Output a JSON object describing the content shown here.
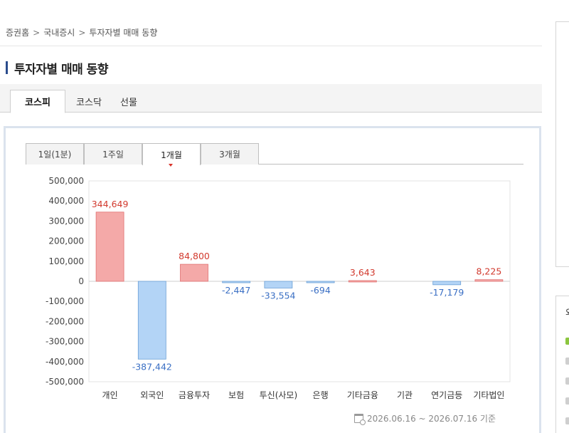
{
  "breadcrumb": {
    "home": "증권홈",
    "section": "국내증시",
    "current": "투자자별 매매 동향",
    "separator": ">"
  },
  "page_title": "투자자별 매매 동향",
  "market_tabs": [
    {
      "label": "코스피",
      "active": true
    },
    {
      "label": "코스닥",
      "active": false
    },
    {
      "label": "선물",
      "active": false
    }
  ],
  "period_tabs": [
    {
      "label": "1일(1분)",
      "active": false
    },
    {
      "label": "1주일",
      "active": false
    },
    {
      "label": "1개월",
      "active": true
    },
    {
      "label": "3개월",
      "active": false
    }
  ],
  "chart_data": {
    "type": "bar",
    "categories": [
      "개인",
      "외국인",
      "금융투자",
      "보험",
      "투신(사모)",
      "은행",
      "기타금융",
      "기관",
      "연기금등",
      "기타법인"
    ],
    "values": [
      344649,
      -387442,
      84800,
      -2447,
      -33554,
      -694,
      3643,
      null,
      -17179,
      8225
    ],
    "value_labels": [
      "344,649",
      "-387,442",
      "84,800",
      "-2,447",
      "-33,554",
      "-694",
      "3,643",
      "",
      "-17,179",
      "8,225"
    ],
    "y_ticks": [
      "500,000",
      "400,000",
      "300,000",
      "200,000",
      "100,000",
      "0",
      "-100,000",
      "-200,000",
      "-300,000",
      "-400,000",
      "-500,000"
    ],
    "ylim": [
      -500000,
      500000
    ],
    "grid": false,
    "colors": {
      "positive_fill": "#f4a9a8",
      "positive_stroke": "#e07070",
      "negative_fill": "#b3d4f6",
      "negative_stroke": "#6a9fd6",
      "positive_text": "#d23a2e",
      "negative_text": "#3a6fc4"
    }
  },
  "date_range": "2026.06.16 ~ 2026.07.16 기준",
  "side_panel": {
    "label": "외"
  }
}
